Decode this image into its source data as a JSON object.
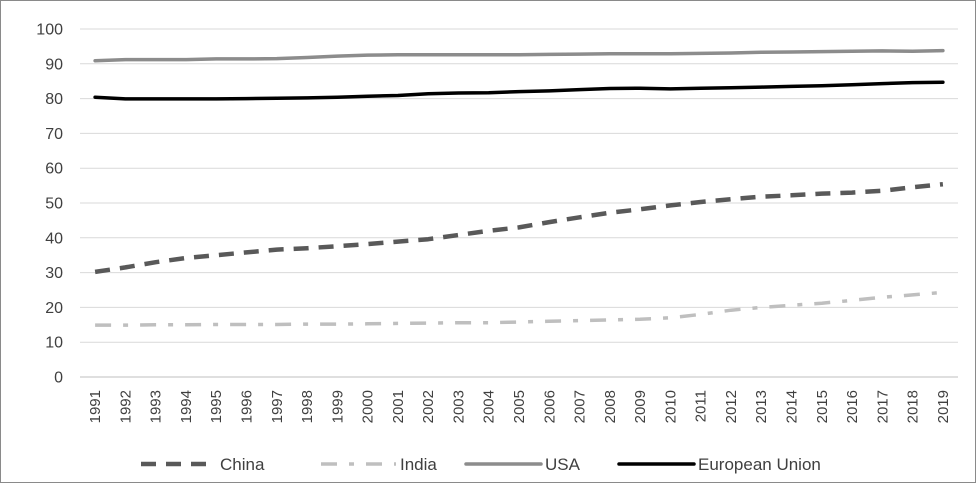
{
  "chart_data": {
    "type": "line",
    "title": "",
    "xlabel": "",
    "ylabel": "",
    "ylim": [
      0,
      100
    ],
    "yticks": [
      0,
      10,
      20,
      30,
      40,
      50,
      60,
      70,
      80,
      90,
      100
    ],
    "grid": true,
    "legend_position": "bottom",
    "x": [
      "1991",
      "1992",
      "1993",
      "1994",
      "1995",
      "1996",
      "1997",
      "1998",
      "1999",
      "2000",
      "2001",
      "2002",
      "2003",
      "2004",
      "2005",
      "2006",
      "2007",
      "2008",
      "2009",
      "2010",
      "2011",
      "2012",
      "2013",
      "2014",
      "2015",
      "2016",
      "2017",
      "2018",
      "2019"
    ],
    "series": [
      {
        "name": "China",
        "color": "#595959",
        "style": "dash",
        "values": [
          30.2,
          31.5,
          33.0,
          34.2,
          35.0,
          35.8,
          36.6,
          37.0,
          37.6,
          38.2,
          38.9,
          39.6,
          40.8,
          42.0,
          43.0,
          44.5,
          45.9,
          47.2,
          48.2,
          49.3,
          50.3,
          51.1,
          51.8,
          52.2,
          52.7,
          53.0,
          53.5,
          54.5,
          55.4
        ]
      },
      {
        "name": "India",
        "color": "#bfbfbf",
        "style": "dash-dot",
        "values": [
          14.9,
          14.9,
          15.0,
          15.0,
          15.1,
          15.1,
          15.1,
          15.2,
          15.2,
          15.3,
          15.4,
          15.5,
          15.6,
          15.6,
          15.8,
          16.0,
          16.2,
          16.4,
          16.6,
          17.0,
          18.0,
          19.2,
          20.0,
          20.6,
          21.2,
          22.0,
          22.9,
          23.6,
          24.3
        ]
      },
      {
        "name": "USA",
        "color": "#8c8c8c",
        "style": "solid",
        "values": [
          90.9,
          91.2,
          91.2,
          91.2,
          91.4,
          91.4,
          91.5,
          91.8,
          92.2,
          92.5,
          92.6,
          92.6,
          92.6,
          92.6,
          92.6,
          92.7,
          92.8,
          92.9,
          92.9,
          92.9,
          93.0,
          93.1,
          93.3,
          93.4,
          93.5,
          93.6,
          93.7,
          93.6,
          93.8
        ]
      },
      {
        "name": "European Union",
        "color": "#000000",
        "style": "solid",
        "values": [
          80.4,
          79.9,
          79.9,
          79.9,
          79.9,
          80.0,
          80.1,
          80.2,
          80.4,
          80.7,
          80.9,
          81.4,
          81.6,
          81.7,
          82.0,
          82.2,
          82.6,
          82.9,
          83.0,
          82.8,
          83.0,
          83.1,
          83.3,
          83.5,
          83.7,
          84.0,
          84.3,
          84.6,
          84.7
        ]
      }
    ]
  }
}
